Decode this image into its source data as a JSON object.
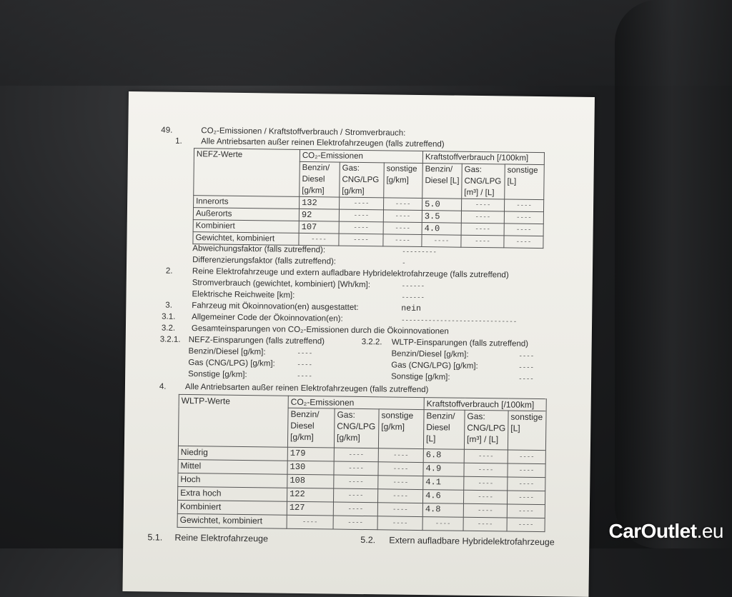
{
  "section": {
    "number": "49.",
    "title": "CO₂-Emissionen / Kraftstoffverbrauch / Stromverbrauch:"
  },
  "item1": {
    "number": "1.",
    "text": "Alle Antriebsarten außer reinen Elektrofahrzeugen (falls zutreffend)"
  },
  "nefz_table": {
    "corner": "NEFZ-Werte",
    "group1": "CO₂-Emissionen",
    "group2": "Kraftstoffverbrauch [/100km]",
    "subheaders": [
      "Benzin/ Diesel [g/km]",
      "Gas: CNG/LPG [g/km]",
      "sonstige [g/km]",
      "Benzin/ Diesel [L]",
      "Gas: CNG/LPG [m³] / [L]",
      "sonstige [L]"
    ],
    "rows": [
      {
        "label": "Innerorts",
        "cells": [
          "132",
          "----",
          "----",
          "5.0",
          "----",
          "----"
        ]
      },
      {
        "label": "Außerorts",
        "cells": [
          "92",
          "----",
          "----",
          "3.5",
          "----",
          "----"
        ]
      },
      {
        "label": "Kombiniert",
        "cells": [
          "107",
          "----",
          "----",
          "4.0",
          "----",
          "----"
        ]
      },
      {
        "label": "Gewichtet, kombiniert",
        "cells": [
          "----",
          "----",
          "----",
          "----",
          "----",
          "----"
        ]
      }
    ]
  },
  "factors": [
    {
      "label": "Abweichungsfaktor (falls zutreffend):",
      "value": "---------"
    },
    {
      "label": "Differenzierungsfaktor (falls zutreffend):",
      "value": "-"
    }
  ],
  "item2": {
    "number": "2.",
    "text": "Reine Elektrofahrzeuge und extern aufladbare Hybridelektrofahrzeuge (falls zutreffend)",
    "lines": [
      {
        "label": "Stromverbrauch (gewichtet, kombiniert) [Wh/km]:",
        "value": "------"
      },
      {
        "label": "Elektrische Reichweite [km]:",
        "value": "------"
      }
    ]
  },
  "item3": {
    "number": "3.",
    "text": "Fahrzeug mit Ökoinnovation(en) ausgestattet:",
    "value": "nein"
  },
  "item31": {
    "number": "3.1.",
    "text": "Allgemeiner Code der Ökoinnovation(en):",
    "value": "------------------------------"
  },
  "item32": {
    "number": "3.2.",
    "text": "Gesamteinsparungen von CO₂-Emissionen durch die Ökoinnovationen"
  },
  "item321": {
    "number": "3.2.1.",
    "text": "NEFZ-Einsparungen (falls zutreffend)",
    "lines": [
      {
        "label": "Benzin/Diesel [g/km]:",
        "value": "----"
      },
      {
        "label": "Gas (CNG/LPG) [g/km]:",
        "value": "----"
      },
      {
        "label": "Sonstige [g/km]:",
        "value": "----"
      }
    ]
  },
  "item322": {
    "number": "3.2.2.",
    "text": "WLTP-Einsparungen (falls zutreffend)",
    "lines": [
      {
        "label": "Benzin/Diesel [g/km]:",
        "value": "----"
      },
      {
        "label": "Gas (CNG/LPG) [g/km]:",
        "value": "----"
      },
      {
        "label": "Sonstige [g/km]:",
        "value": "----"
      }
    ]
  },
  "item4": {
    "number": "4.",
    "text": "Alle Antriebsarten außer reinen Elektrofahrzeugen (falls zutreffend)"
  },
  "wltp_table": {
    "corner": "WLTP-Werte",
    "group1": "CO₂-Emissionen",
    "group2": "Kraftstoffverbrauch [/100km]",
    "subheaders": [
      "Benzin/ Diesel [g/km]",
      "Gas: CNG/LPG [g/km]",
      "sonstige [g/km]",
      "Benzin/ Diesel [L]",
      "Gas: CNG/LPG [m³] / [L]",
      "sonstige [L]"
    ],
    "rows": [
      {
        "label": "Niedrig",
        "cells": [
          "179",
          "----",
          "----",
          "6.8",
          "----",
          "----"
        ]
      },
      {
        "label": "Mittel",
        "cells": [
          "130",
          "----",
          "----",
          "4.9",
          "----",
          "----"
        ]
      },
      {
        "label": "Hoch",
        "cells": [
          "108",
          "----",
          "----",
          "4.1",
          "----",
          "----"
        ]
      },
      {
        "label": "Extra hoch",
        "cells": [
          "122",
          "----",
          "----",
          "4.6",
          "----",
          "----"
        ]
      },
      {
        "label": "Kombiniert",
        "cells": [
          "127",
          "----",
          "----",
          "4.8",
          "----",
          "----"
        ]
      },
      {
        "label": "Gewichtet, kombiniert",
        "cells": [
          "----",
          "----",
          "----",
          "----",
          "----",
          "----"
        ]
      }
    ]
  },
  "item51": {
    "number": "5.1.",
    "text": "Reine Elektrofahrzeuge"
  },
  "item52": {
    "number": "5.2.",
    "text": "Extern aufladbare Hybridelektrofahrzeuge"
  },
  "watermark": {
    "brand": "CarOutlet",
    "tld": ".eu",
    "color": "#ffffff"
  }
}
